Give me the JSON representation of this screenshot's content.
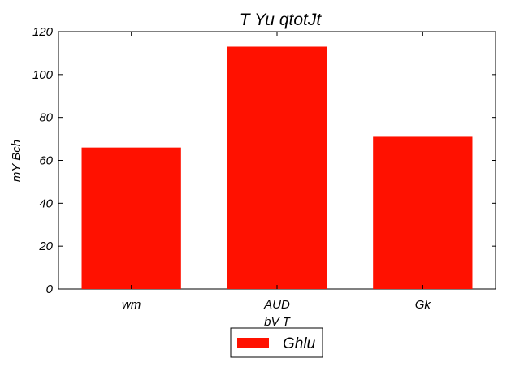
{
  "chart_data": {
    "type": "bar",
    "title": "T  Yu qtotJt",
    "xlabel": "bV T",
    "ylabel": "mY Bch",
    "categories": [
      "wm",
      "AUD",
      "Gk"
    ],
    "series": [
      {
        "name": "Ghlu",
        "values": [
          66,
          113,
          71
        ]
      }
    ],
    "ylim": [
      0,
      120
    ],
    "yticks": [
      "0",
      "20",
      "40",
      "60",
      "80",
      "100",
      "120"
    ],
    "grid": false,
    "legend_position": "bottom-center",
    "bar_color": "#ff1100"
  }
}
